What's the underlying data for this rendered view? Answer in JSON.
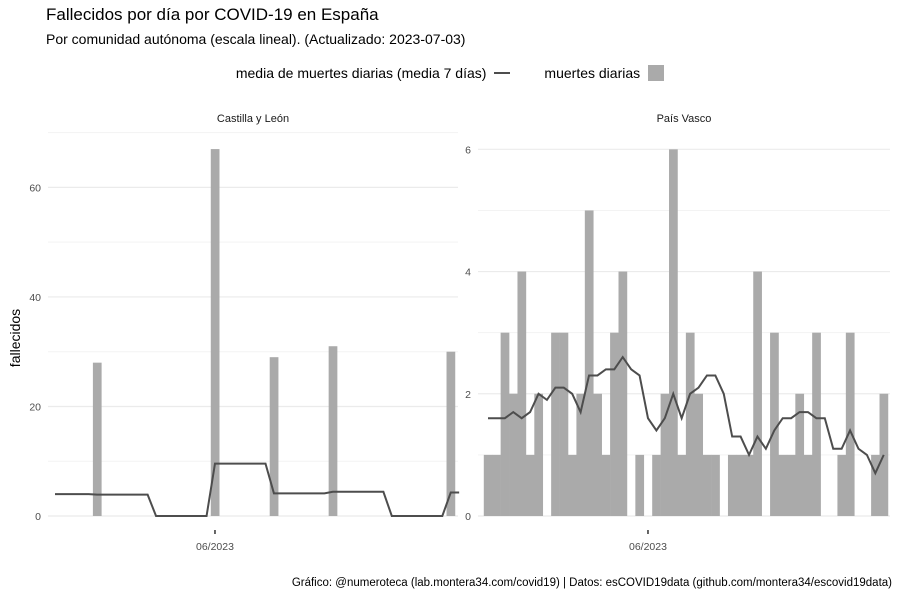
{
  "title": "Fallecidos por día por COVID-19 en España",
  "subtitle": "Por comunidad autónoma (escala lineal). (Actualizado: 2023-07-03)",
  "legend": {
    "line_label": "media de muertes diarias (media 7 días)",
    "bar_label": "muertes diarias"
  },
  "caption": "Gráfico: @numeroteca (lab.montera34.com/covid19) | Datos: esCOVID19data (github.com/montera34/escovid19data)",
  "colors": {
    "bar": "#aaaaaa",
    "line": "#4d4d4d",
    "grid": "#ebebeb"
  },
  "chart_data": [
    {
      "type": "bar",
      "title": "Castilla y León",
      "ylabel": "fallecidos",
      "xlabel": "",
      "ylim": [
        0,
        70.3
      ],
      "yticks": [
        0,
        20,
        40,
        60
      ],
      "ytick_labels": [
        "0",
        "20",
        "40",
        "60"
      ],
      "minor_yticks": [
        10,
        30,
        50,
        70
      ],
      "xtick_day": 19,
      "xtick_label": "06/2023",
      "start_date": "2023-05-13",
      "daily": [
        0,
        0,
        0,
        0,
        0,
        28,
        0,
        0,
        0,
        0,
        0,
        0,
        0,
        0,
        0,
        0,
        0,
        0,
        0,
        67,
        0,
        0,
        0,
        0,
        0,
        0,
        29,
        0,
        0,
        0,
        0,
        0,
        0,
        31,
        0,
        0,
        0,
        0,
        0,
        0,
        0,
        0,
        0,
        0,
        0,
        0,
        0,
        30,
        0
      ],
      "avg7": [
        4.0,
        4.0,
        4.0,
        4.0,
        4.0,
        3.9,
        3.9,
        3.9,
        3.9,
        3.9,
        3.9,
        3.9,
        0,
        0,
        0,
        0,
        0,
        0,
        0,
        9.57,
        9.57,
        9.57,
        9.57,
        9.57,
        9.57,
        9.57,
        4.14,
        4.14,
        4.14,
        4.14,
        4.14,
        4.14,
        4.14,
        4.43,
        4.43,
        4.43,
        4.43,
        4.43,
        4.43,
        4.43,
        0,
        0,
        0,
        0,
        0,
        0,
        0,
        4.29,
        4.29
      ]
    },
    {
      "type": "bar",
      "title": "País Vasco",
      "ylabel": "fallecidos",
      "xlabel": "",
      "ylim": [
        0,
        6.3
      ],
      "yticks": [
        0,
        2,
        4,
        6
      ],
      "ytick_labels": [
        "0",
        "2",
        "4",
        "6"
      ],
      "minor_yticks": [
        1,
        3,
        5
      ],
      "xtick_day": 19,
      "xtick_label": "06/2023",
      "start_date": "2023-05-13",
      "daily": [
        1,
        1,
        3,
        2,
        4,
        1,
        2,
        0,
        3,
        3,
        1,
        2,
        5,
        2,
        1,
        3,
        4,
        0,
        1,
        0,
        1,
        2,
        6,
        1,
        3,
        2,
        1,
        1,
        0,
        1,
        1,
        1,
        4,
        0,
        3,
        1,
        1,
        2,
        1,
        3,
        0,
        0,
        1,
        3,
        0,
        0,
        1,
        2
      ],
      "avg7": [
        1.6,
        1.6,
        1.6,
        1.7,
        1.6,
        1.7,
        2.0,
        1.9,
        2.1,
        2.1,
        2.0,
        1.7,
        2.3,
        2.3,
        2.4,
        2.4,
        2.6,
        2.4,
        2.3,
        1.6,
        1.4,
        1.6,
        2.0,
        1.6,
        2.0,
        2.1,
        2.3,
        2.3,
        2.0,
        1.3,
        1.3,
        1.0,
        1.3,
        1.1,
        1.4,
        1.6,
        1.6,
        1.7,
        1.7,
        1.6,
        1.6,
        1.1,
        1.1,
        1.4,
        1.1,
        1.0,
        0.7,
        1.0
      ]
    }
  ]
}
